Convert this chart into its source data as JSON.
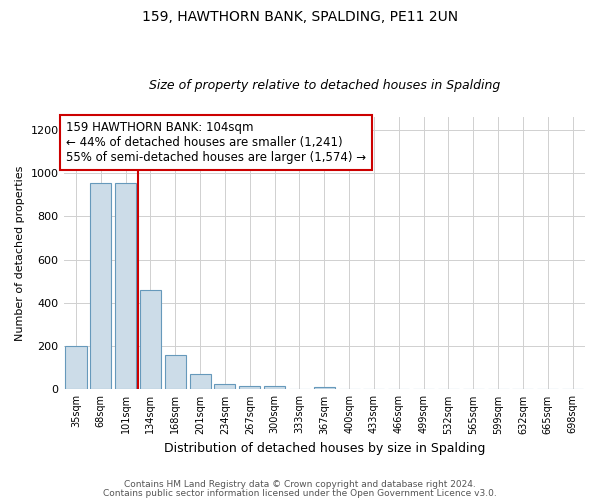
{
  "title1": "159, HAWTHORN BANK, SPALDING, PE11 2UN",
  "title2": "Size of property relative to detached houses in Spalding",
  "xlabel": "Distribution of detached houses by size in Spalding",
  "ylabel": "Number of detached properties",
  "bin_labels": [
    "35sqm",
    "68sqm",
    "101sqm",
    "134sqm",
    "168sqm",
    "201sqm",
    "234sqm",
    "267sqm",
    "300sqm",
    "333sqm",
    "367sqm",
    "400sqm",
    "433sqm",
    "466sqm",
    "499sqm",
    "532sqm",
    "565sqm",
    "599sqm",
    "632sqm",
    "665sqm",
    "698sqm"
  ],
  "bar_values": [
    200,
    955,
    955,
    460,
    160,
    70,
    25,
    18,
    18,
    0,
    12,
    0,
    0,
    0,
    0,
    0,
    0,
    0,
    0,
    0,
    0
  ],
  "bar_color": "#ccdce8",
  "bar_edgecolor": "#6699bb",
  "property_line_x": 2.5,
  "vline_color": "#cc0000",
  "annotation_line1": "159 HAWTHORN BANK: 104sqm",
  "annotation_line2": "← 44% of detached houses are smaller (1,241)",
  "annotation_line3": "55% of semi-detached houses are larger (1,574) →",
  "annotation_box_edgecolor": "#cc0000",
  "ylim": [
    0,
    1260
  ],
  "yticks": [
    0,
    200,
    400,
    600,
    800,
    1000,
    1200
  ],
  "footer1": "Contains HM Land Registry data © Crown copyright and database right 2024.",
  "footer2": "Contains public sector information licensed under the Open Government Licence v3.0.",
  "bg_color": "#ffffff",
  "grid_color": "#d0d0d0"
}
